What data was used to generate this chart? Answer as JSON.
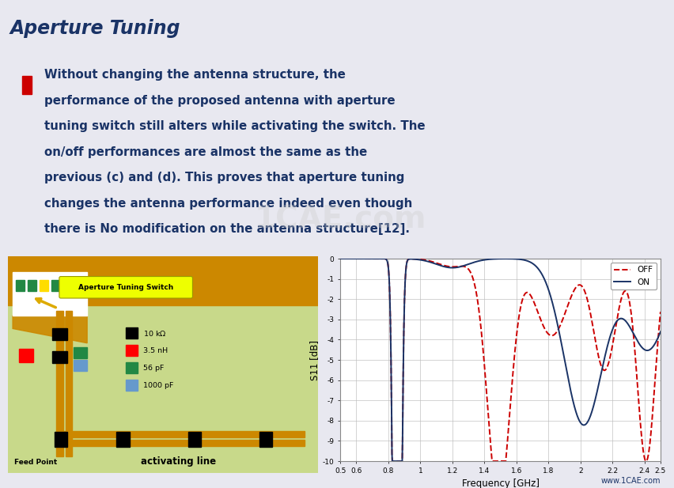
{
  "title": "Aperture Tuning",
  "title_color": "#1a3366",
  "header_bar_color": "#1a3366",
  "bg_color": "#e8e8f0",
  "content_bg": "#ffffff",
  "bullet_color": "#1a3366",
  "bullet_marker_color": "#cc0000",
  "plot_bg": "#ffffff",
  "plot_grid_color": "#bbbbbb",
  "off_color": "#cc0000",
  "on_color": "#1a3366",
  "xlabel": "Frequency [GHz]",
  "ylabel": "S11 [dB]",
  "xlim": [
    0.5,
    2.5
  ],
  "ylim": [
    -10,
    0
  ],
  "circuit_bg": "#c8d98a",
  "antenna_color": "#cc8800",
  "footer_text": "www.1CAE.com",
  "bullet_lines": [
    "Without changing the antenna structure, the",
    "performance of the proposed antenna with aperture",
    "tuning switch still alters while activating the switch. The",
    "on/off performances are almost the same as the",
    "previous (c) and (d). This proves that aperture tuning",
    "changes the antenna performance indeed even though",
    "there is No modification on the antenna structure[12]."
  ]
}
